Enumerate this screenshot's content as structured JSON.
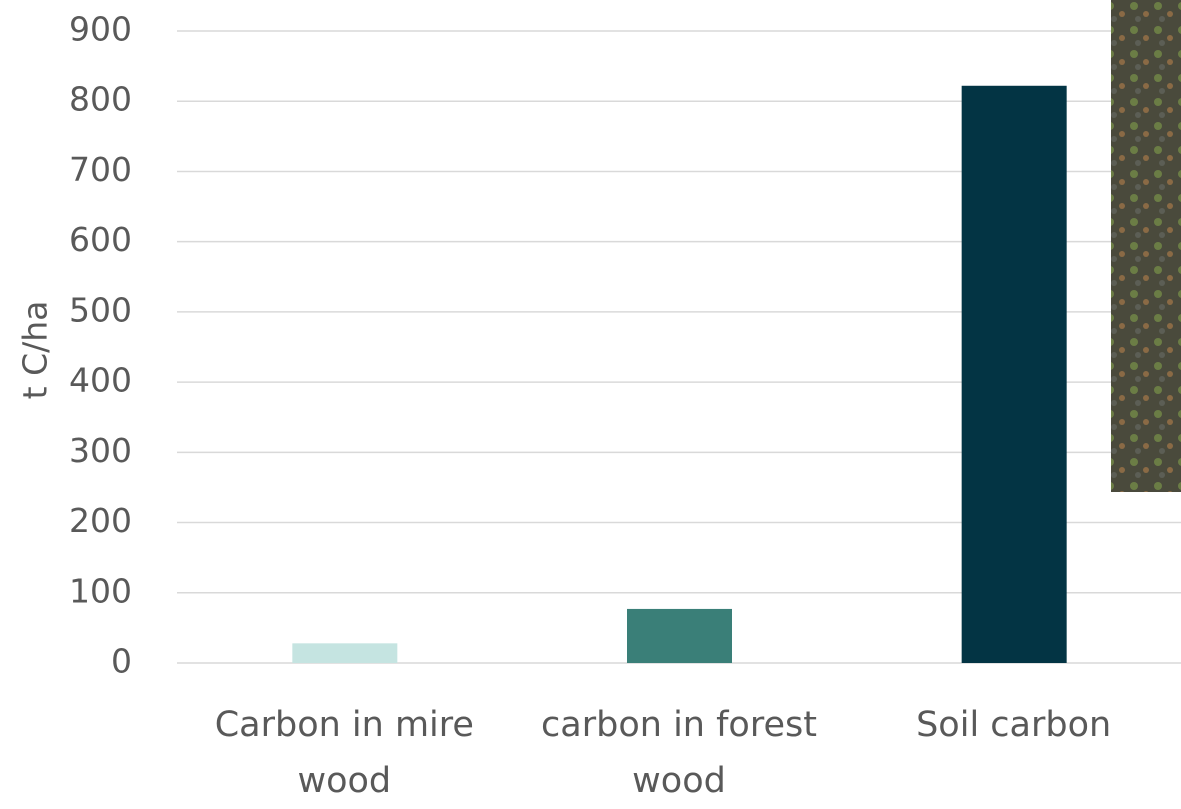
{
  "chart_data": {
    "type": "bar",
    "y_label": "t C/ha",
    "categories": [
      "Carbon in mire wood",
      "carbon in forest wood",
      "Soil carbon"
    ],
    "values": [
      28,
      77,
      822
    ],
    "colors": [
      "#c5e4e1",
      "#3a7f78",
      "#033444"
    ],
    "ylim": [
      0,
      900
    ],
    "yticks": [
      0,
      100,
      200,
      300,
      400,
      500,
      600,
      700,
      800,
      900
    ],
    "grid": true
  }
}
